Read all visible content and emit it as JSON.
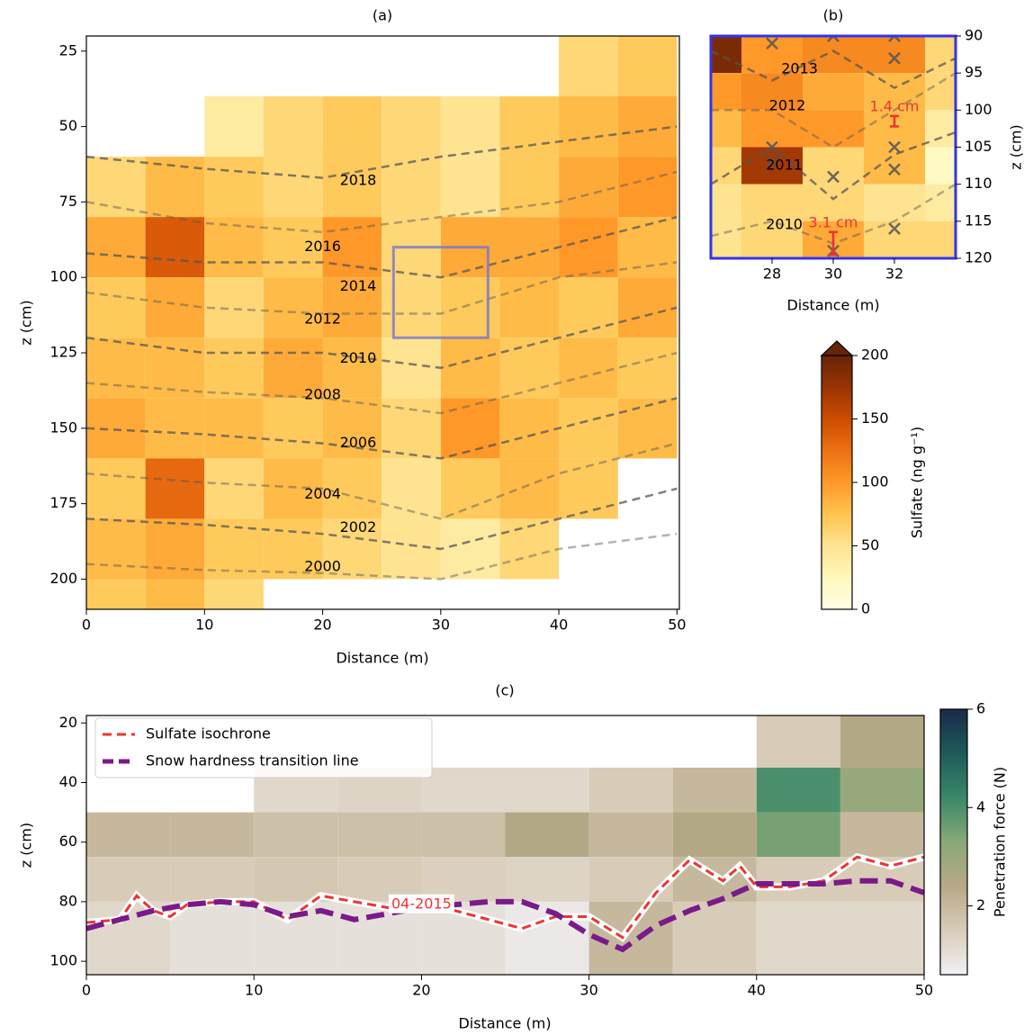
{
  "chart_data": [
    {
      "type": "heatmap",
      "title": "(a)",
      "xlabel": "Distance (m)",
      "ylabel": "z (cm)",
      "xlim": [
        0,
        50.2
      ],
      "ylim": [
        210,
        20
      ],
      "xticks": [
        0,
        10,
        20,
        30,
        40,
        50
      ],
      "yticks": [
        25,
        50,
        75,
        100,
        125,
        150,
        175,
        200
      ],
      "x_edges": [
        0,
        5,
        10,
        15,
        20,
        25,
        30,
        35,
        40,
        45,
        50
      ],
      "y_edges": [
        20,
        40,
        60,
        80,
        100,
        120,
        140,
        160,
        180,
        200,
        210
      ],
      "values": [
        [
          null,
          null,
          null,
          null,
          null,
          null,
          null,
          null,
          60,
          70
        ],
        [
          null,
          null,
          40,
          60,
          70,
          60,
          50,
          70,
          80,
          90
        ],
        [
          60,
          80,
          70,
          60,
          70,
          60,
          50,
          70,
          90,
          100
        ],
        [
          90,
          140,
          80,
          70,
          100,
          60,
          90,
          90,
          100,
          80
        ],
        [
          70,
          90,
          60,
          80,
          90,
          60,
          70,
          80,
          70,
          90
        ],
        [
          80,
          80,
          70,
          90,
          80,
          50,
          80,
          70,
          80,
          70
        ],
        [
          90,
          80,
          80,
          70,
          80,
          60,
          100,
          80,
          70,
          80
        ],
        [
          70,
          130,
          60,
          80,
          70,
          50,
          70,
          80,
          70,
          null
        ],
        [
          80,
          90,
          70,
          70,
          60,
          50,
          40,
          60,
          null,
          null
        ],
        [
          70,
          80,
          60,
          null,
          null,
          null,
          null,
          null,
          null,
          null
        ]
      ],
      "colormap": [
        "#ffffe5",
        "#fff7bc",
        "#fee391",
        "#fec44f",
        "#fe9929",
        "#ec7014",
        "#cc4c02",
        "#993404",
        "#662506"
      ],
      "line_color": "#555555",
      "line_x": [
        0,
        10,
        20,
        30,
        40,
        50
      ],
      "lines": [
        {
          "values": [
            60,
            64,
            67,
            60,
            55,
            50
          ]
        },
        {
          "values": [
            75,
            82,
            85,
            80,
            75,
            65
          ]
        },
        {
          "values": [
            92,
            95,
            95,
            100,
            90,
            80
          ]
        },
        {
          "values": [
            105,
            110,
            112,
            112,
            100,
            95
          ]
        },
        {
          "values": [
            120,
            125,
            125,
            130,
            120,
            110
          ]
        },
        {
          "values": [
            135,
            138,
            140,
            145,
            135,
            125
          ]
        },
        {
          "values": [
            150,
            152,
            155,
            160,
            150,
            140
          ]
        },
        {
          "values": [
            165,
            168,
            170,
            180,
            165,
            155
          ]
        },
        {
          "values": [
            180,
            182,
            185,
            190,
            180,
            170
          ]
        },
        {
          "values": [
            195,
            197,
            198,
            200,
            190,
            185
          ]
        }
      ],
      "annotations": [
        {
          "text": "2018",
          "x": 23,
          "y": 68
        },
        {
          "text": "2016",
          "x": 20,
          "y": 90
        },
        {
          "text": "2014",
          "x": 23,
          "y": 103
        },
        {
          "text": "2012",
          "x": 20,
          "y": 114
        },
        {
          "text": "2010",
          "x": 23,
          "y": 127
        },
        {
          "text": "2008",
          "x": 20,
          "y": 139
        },
        {
          "text": "2006",
          "x": 23,
          "y": 155
        },
        {
          "text": "2004",
          "x": 20,
          "y": 172
        },
        {
          "text": "2002",
          "x": 23,
          "y": 183
        },
        {
          "text": "2000",
          "x": 20,
          "y": 196
        }
      ],
      "inset_box": {
        "x": [
          26,
          34
        ],
        "y": [
          90,
          120
        ],
        "color": "#7777cc"
      },
      "colorbar": {
        "label": "Sulfate (ng g⁻¹)",
        "lim": [
          0,
          200
        ],
        "ticks": [
          0,
          50,
          100,
          150,
          200
        ],
        "extend": "max"
      }
    },
    {
      "type": "heatmap",
      "title": "(b)",
      "xlabel": "Distance (m)",
      "ylabel": "z (cm)",
      "y_axis_side": "right",
      "xlim": [
        26,
        34
      ],
      "ylim": [
        120,
        90
      ],
      "xticks": [
        28,
        30,
        32
      ],
      "yticks": [
        90,
        95,
        100,
        105,
        110,
        115,
        120
      ],
      "x_edges": [
        26,
        27,
        29,
        31,
        33,
        34
      ],
      "y_edges": [
        90,
        95,
        100,
        105,
        110,
        115,
        120
      ],
      "values": [
        [
          190,
          100,
          110,
          110,
          60
        ],
        [
          100,
          110,
          90,
          80,
          60
        ],
        [
          80,
          100,
          100,
          80,
          40
        ],
        [
          60,
          170,
          60,
          80,
          20
        ],
        [
          50,
          60,
          60,
          50,
          40
        ],
        [
          50,
          60,
          90,
          60,
          60
        ]
      ],
      "colormap": [
        "#ffffe5",
        "#fff7bc",
        "#fee391",
        "#fec44f",
        "#fe9929",
        "#ec7014",
        "#cc4c02",
        "#993404",
        "#662506"
      ],
      "value_lim": [
        0,
        200
      ],
      "frame_color": "#3333ee",
      "line_color": "#555555",
      "line_x": [
        26,
        28,
        30,
        32,
        34
      ],
      "lines": [
        {
          "values": [
            92,
            96,
            92,
            97,
            93
          ]
        },
        {
          "values": [
            100,
            100,
            105,
            100,
            95
          ]
        },
        {
          "values": [
            110,
            105,
            112,
            106,
            103
          ]
        },
        {
          "values": [
            117,
            115,
            118,
            115,
            110
          ]
        }
      ],
      "annotations": [
        {
          "text": "2013",
          "x": 28.9,
          "y": 94.5
        },
        {
          "text": "2012",
          "x": 28.5,
          "y": 99.5
        },
        {
          "text": "2011",
          "x": 28.4,
          "y": 107.5
        },
        {
          "text": "2010",
          "x": 28.4,
          "y": 115.5
        }
      ],
      "markers": {
        "x": [
          28,
          30,
          32,
          32,
          28,
          28,
          30,
          32,
          32,
          30,
          32
        ],
        "y": [
          91,
          90,
          90,
          93,
          105,
          107,
          109,
          105,
          108,
          119,
          116
        ],
        "color": "#555555"
      },
      "errorbars": [
        {
          "label": "1.4 cm",
          "x": 32,
          "y": 101.5,
          "err": 0.7
        },
        {
          "label": "3.1 cm",
          "x": 30,
          "y": 118,
          "err": 1.55
        }
      ],
      "errorbar_color": "#ee3333"
    },
    {
      "type": "heatmap",
      "title": "(c)",
      "xlabel": "Distance (m)",
      "ylabel": "z (cm)",
      "xlim": [
        0,
        50
      ],
      "ylim": [
        104.5,
        17.5
      ],
      "xticks": [
        0,
        10,
        20,
        30,
        40,
        50
      ],
      "yticks": [
        20,
        40,
        60,
        80,
        100
      ],
      "x_edges": [
        0,
        5,
        10,
        15,
        20,
        25,
        30,
        35,
        40,
        45,
        50
      ],
      "y_edges": [
        17.5,
        35,
        50,
        65,
        80,
        104.5
      ],
      "values": [
        [
          null,
          null,
          null,
          null,
          null,
          null,
          null,
          null,
          1.5,
          2.5
        ],
        [
          null,
          null,
          1.2,
          1.3,
          1.2,
          1.2,
          1.5,
          2,
          4,
          3
        ],
        [
          2,
          2,
          1.8,
          1.8,
          1.8,
          2.5,
          2,
          2.5,
          3.5,
          2
        ],
        [
          1.5,
          1.5,
          1.6,
          1.5,
          1.4,
          1.3,
          1.5,
          2,
          1.5,
          1.5
        ],
        [
          1.2,
          1,
          1,
          1,
          1,
          0.8,
          2,
          1.5,
          1.2,
          1.2
        ]
      ],
      "colormap": [
        "#f2f0f5",
        "#d8ccb8",
        "#b8a888",
        "#88a878",
        "#3a8868",
        "#1e5a5a",
        "#1a2a48"
      ],
      "legend": "upper left",
      "series": [
        {
          "name": "Sulfate isochrone",
          "color": "#ee3333",
          "halo": true,
          "x": [
            0,
            2,
            3,
            4,
            5,
            6,
            8,
            10,
            12,
            14,
            16,
            18,
            20,
            22,
            24,
            26,
            28,
            30,
            32,
            34,
            36,
            38,
            39,
            40,
            42,
            44,
            46,
            48,
            50
          ],
          "values": [
            87,
            86,
            78,
            83,
            85,
            81,
            80,
            80,
            86,
            78,
            80,
            82,
            81,
            83,
            86,
            89,
            85,
            85,
            92,
            77,
            66,
            73,
            68,
            75,
            75,
            73,
            65,
            68,
            65
          ]
        },
        {
          "name": "Snow hardness transition line",
          "color": "#7a1a8a",
          "x": [
            0,
            2,
            4,
            6,
            8,
            10,
            12,
            14,
            16,
            20,
            22,
            24,
            26,
            28,
            30,
            32,
            34,
            36,
            38,
            40,
            42,
            44,
            46,
            48,
            50
          ],
          "values": [
            89,
            86,
            83,
            81,
            80,
            81,
            85,
            83,
            86,
            82,
            81,
            80,
            80,
            84,
            91,
            96,
            88,
            83,
            79,
            74,
            74,
            74,
            73,
            73,
            77
          ]
        }
      ],
      "annotations": [
        {
          "text": "04-2015",
          "x": 20,
          "y": 81,
          "color": "#ee3333"
        }
      ],
      "colorbar": {
        "label": "Penetration force (N)",
        "lim": [
          0.6,
          6
        ],
        "ticks": [
          2,
          4,
          6
        ]
      }
    }
  ]
}
